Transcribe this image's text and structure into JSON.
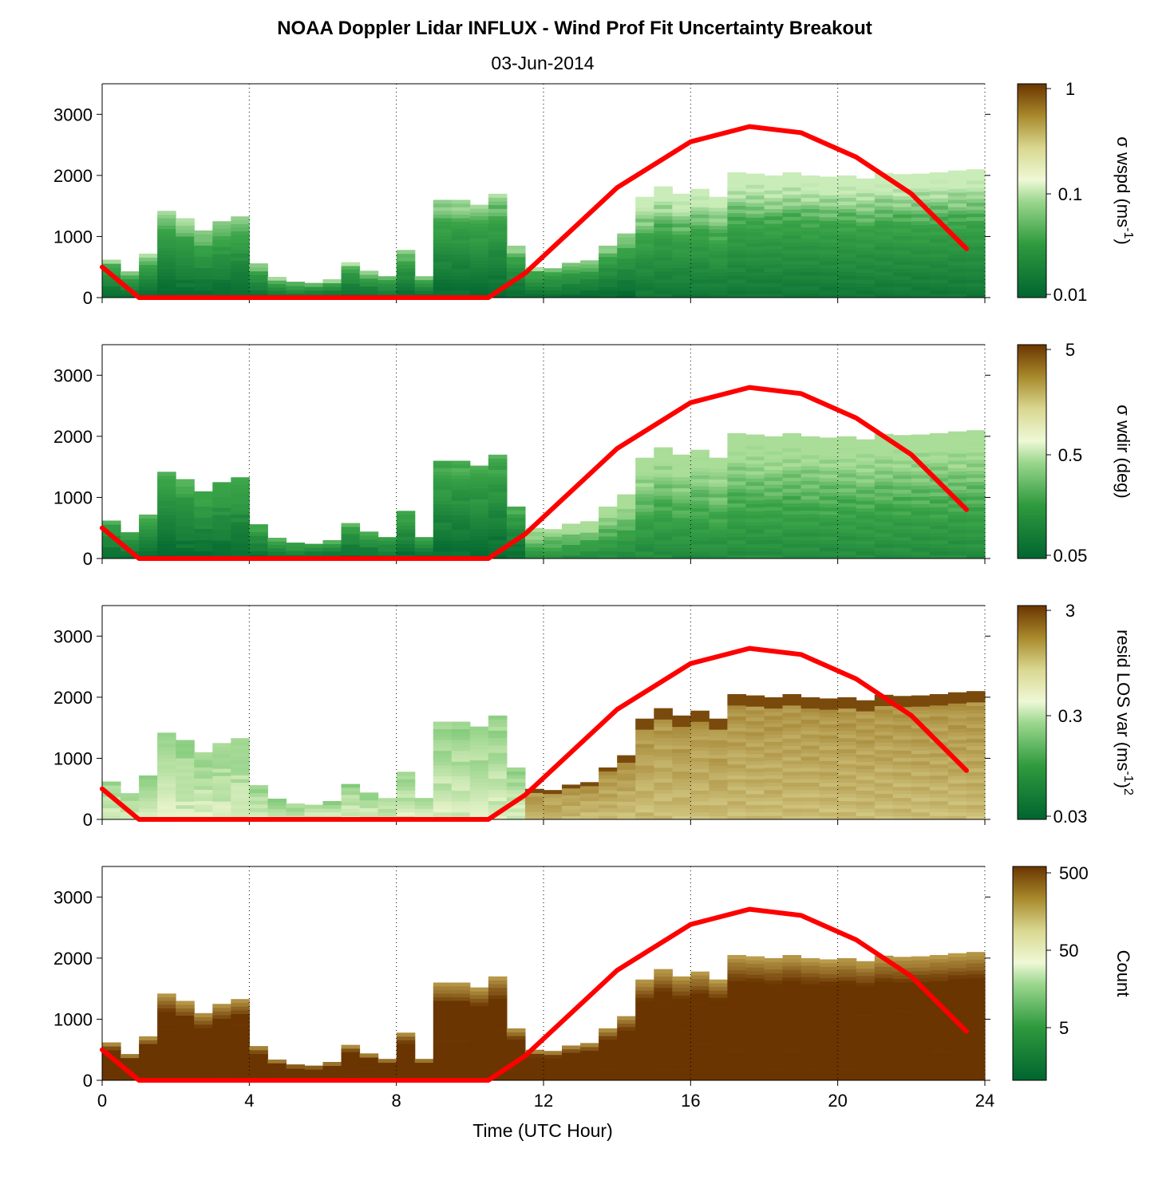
{
  "title": "NOAA Doppler Lidar INFLUX - Wind Prof Fit Uncertainty Breakout",
  "subtitle": "03-Jun-2014",
  "chart_data": {
    "type": "heatmap",
    "xlabel": "Time (UTC Hour)",
    "xlim": [
      0,
      24
    ],
    "xticks": [
      0,
      4,
      8,
      12,
      16,
      20,
      24
    ],
    "ylim": [
      0,
      3500
    ],
    "yticks": [
      0,
      1000,
      2000,
      3000
    ],
    "grid": "vertical dotted lines at x ticks",
    "colors": {
      "dark_green": "#00652f",
      "light": "#f2f7d6",
      "brown": "#6a3500",
      "curve": "#ff0000"
    },
    "column_tops_m": [
      [
        0.0,
        620
      ],
      [
        0.5,
        430
      ],
      [
        1.0,
        720
      ],
      [
        1.5,
        1420
      ],
      [
        2.0,
        1300
      ],
      [
        2.5,
        1100
      ],
      [
        3.0,
        1250
      ],
      [
        3.5,
        1330
      ],
      [
        4.0,
        560
      ],
      [
        4.5,
        340
      ],
      [
        5.0,
        260
      ],
      [
        5.5,
        240
      ],
      [
        6.0,
        300
      ],
      [
        6.5,
        580
      ],
      [
        7.0,
        440
      ],
      [
        7.5,
        350
      ],
      [
        8.0,
        780
      ],
      [
        8.5,
        350
      ],
      [
        9.0,
        1600
      ],
      [
        9.5,
        1600
      ],
      [
        10.0,
        1520
      ],
      [
        10.5,
        1700
      ],
      [
        11.0,
        850
      ],
      [
        11.5,
        500
      ],
      [
        12.0,
        480
      ],
      [
        12.5,
        570
      ],
      [
        13.0,
        610
      ],
      [
        13.5,
        850
      ],
      [
        14.0,
        1050
      ],
      [
        14.5,
        1650
      ],
      [
        15.0,
        1820
      ],
      [
        15.5,
        1700
      ],
      [
        16.0,
        1780
      ],
      [
        16.5,
        1650
      ],
      [
        17.0,
        2050
      ],
      [
        17.5,
        2030
      ],
      [
        18.0,
        2000
      ],
      [
        18.5,
        2050
      ],
      [
        19.0,
        2000
      ],
      [
        19.5,
        1980
      ],
      [
        20.0,
        2000
      ],
      [
        20.5,
        1950
      ],
      [
        21.0,
        2040
      ],
      [
        21.5,
        2020
      ],
      [
        22.0,
        2030
      ],
      [
        22.5,
        2050
      ],
      [
        23.0,
        2080
      ],
      [
        23.5,
        2100
      ]
    ],
    "overlay_curve": {
      "name": "",
      "color": "#ff0000",
      "points": [
        [
          0,
          500
        ],
        [
          1,
          0
        ],
        [
          10.5,
          0
        ],
        [
          11.5,
          400
        ],
        [
          14,
          1800
        ],
        [
          16,
          2550
        ],
        [
          17.6,
          2800
        ],
        [
          19,
          2700
        ],
        [
          20.5,
          2300
        ],
        [
          22,
          1700
        ],
        [
          23.5,
          800
        ]
      ]
    },
    "panels": [
      {
        "colorbar_label": "σ wspd (ms",
        "colorbar_sup": "-1",
        "colorbar_tail": ")",
        "colorbar_scale": "log",
        "colorbar_ticks": [
          "1",
          "0.1",
          "0.01"
        ],
        "palette": "green",
        "level_description": "mostly dark green"
      },
      {
        "colorbar_label": "σ wdir (deg)",
        "colorbar_sup": "",
        "colorbar_tail": "",
        "colorbar_scale": "log",
        "colorbar_ticks": [
          "5",
          "0.5",
          "0.05"
        ],
        "palette": "green",
        "level_description": "dark to mid green"
      },
      {
        "colorbar_label": "resid LOS var (ms",
        "colorbar_sup": "-1",
        "colorbar_tail": ")",
        "colorbar_sup2": "2",
        "colorbar_scale": "log",
        "colorbar_ticks": [
          "3",
          "0.3",
          "0.03"
        ],
        "palette": "mixed",
        "level_description": "light green at night, olive/brown by day"
      },
      {
        "colorbar_label": "Count",
        "colorbar_sup": "",
        "colorbar_tail": "",
        "colorbar_scale": "log",
        "colorbar_ticks": [
          "500",
          "50",
          "5"
        ],
        "palette": "brown",
        "level_description": "dark brown"
      }
    ]
  }
}
